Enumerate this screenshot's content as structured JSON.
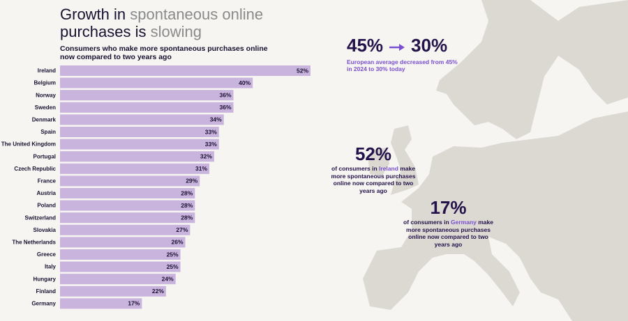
{
  "chart_data": {
    "type": "bar",
    "orientation": "horizontal",
    "title": [
      "Growth in ",
      "spontaneous online",
      " purchases is ",
      "slowing"
    ],
    "subtitle": "Consumers who make more spontaneous purchases online now compared to two years ago",
    "categories": [
      "Ireland",
      "Belgium",
      "Norway",
      "Sweden",
      "Denmark",
      "Spain",
      "The United Kingdom",
      "Portugal",
      "Czech Republic",
      "France",
      "Austria",
      "Poland",
      "Switzerland",
      "Slovakia",
      "The Netherlands",
      "Greece",
      "Italy",
      "Hungary",
      "Finland",
      "Germany"
    ],
    "values": [
      52,
      40,
      36,
      36,
      34,
      33,
      33,
      32,
      31,
      29,
      28,
      28,
      28,
      27,
      26,
      25,
      25,
      24,
      22,
      17
    ],
    "value_labels": [
      "52%",
      "40%",
      "36%",
      "36%",
      "34%",
      "33%",
      "33%",
      "32%",
      "31%",
      "29%",
      "28%",
      "28%",
      "28%",
      "27%",
      "26%",
      "25%",
      "25%",
      "24%",
      "22%",
      "17%"
    ],
    "color": "#c9b4de",
    "annotations": {
      "average": {
        "from": "45%",
        "to": "30%",
        "text": "European average decreased from 45% in 2024 to 30% today"
      },
      "callouts": [
        {
          "value": "52%",
          "text": [
            "of consumers in ",
            "Ireland",
            " make more spontaneous purchases online now compared to two years ago"
          ]
        },
        {
          "value": "17%",
          "text": [
            "of consumers in ",
            "Germany",
            " make more spontaneous purchases online now compared to two years ago"
          ]
        }
      ]
    }
  }
}
